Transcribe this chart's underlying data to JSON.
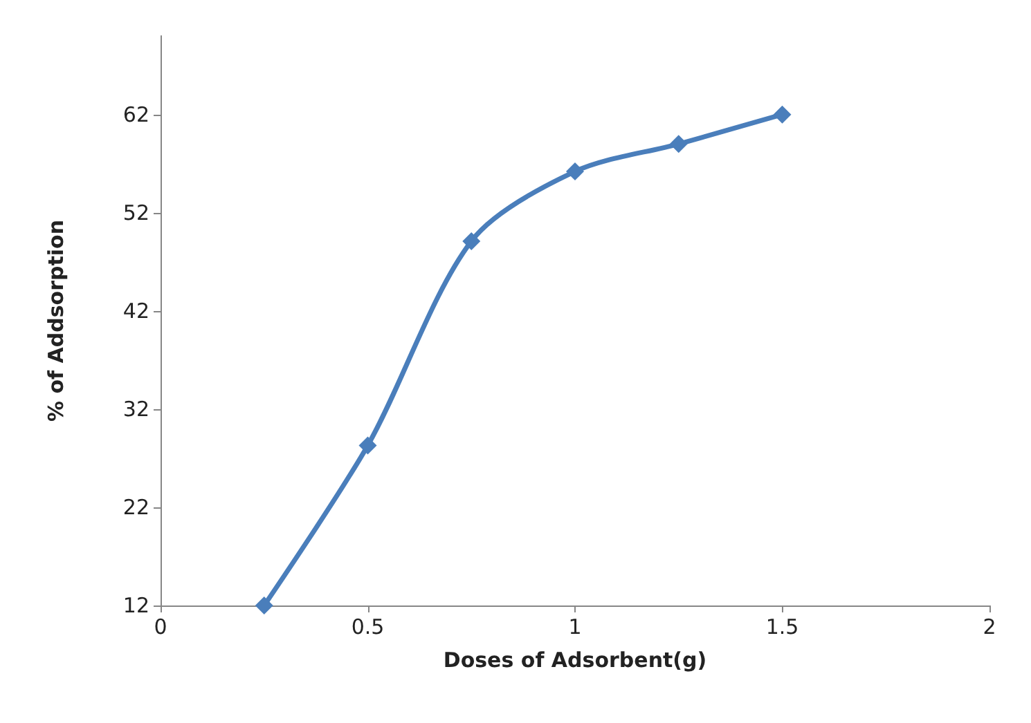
{
  "chart_data": {
    "type": "line",
    "xlabel": "Doses of Adsorbent(g)",
    "ylabel": "% of Addsorption",
    "x": [
      0.25,
      0.5,
      0.75,
      1,
      1.25,
      1.5
    ],
    "series": [
      {
        "color": "#4a7ebb",
        "values": [
          12,
          28.3,
          49.1,
          56.2,
          59,
          62
        ]
      }
    ],
    "xlim": [
      0,
      2
    ],
    "xticks": [
      0,
      0.5,
      1,
      1.5,
      2
    ],
    "ylim": [
      12,
      70
    ],
    "yticks": [
      12,
      22,
      32,
      42,
      52,
      62
    ],
    "marker": "diamond",
    "line_style": "solid"
  }
}
